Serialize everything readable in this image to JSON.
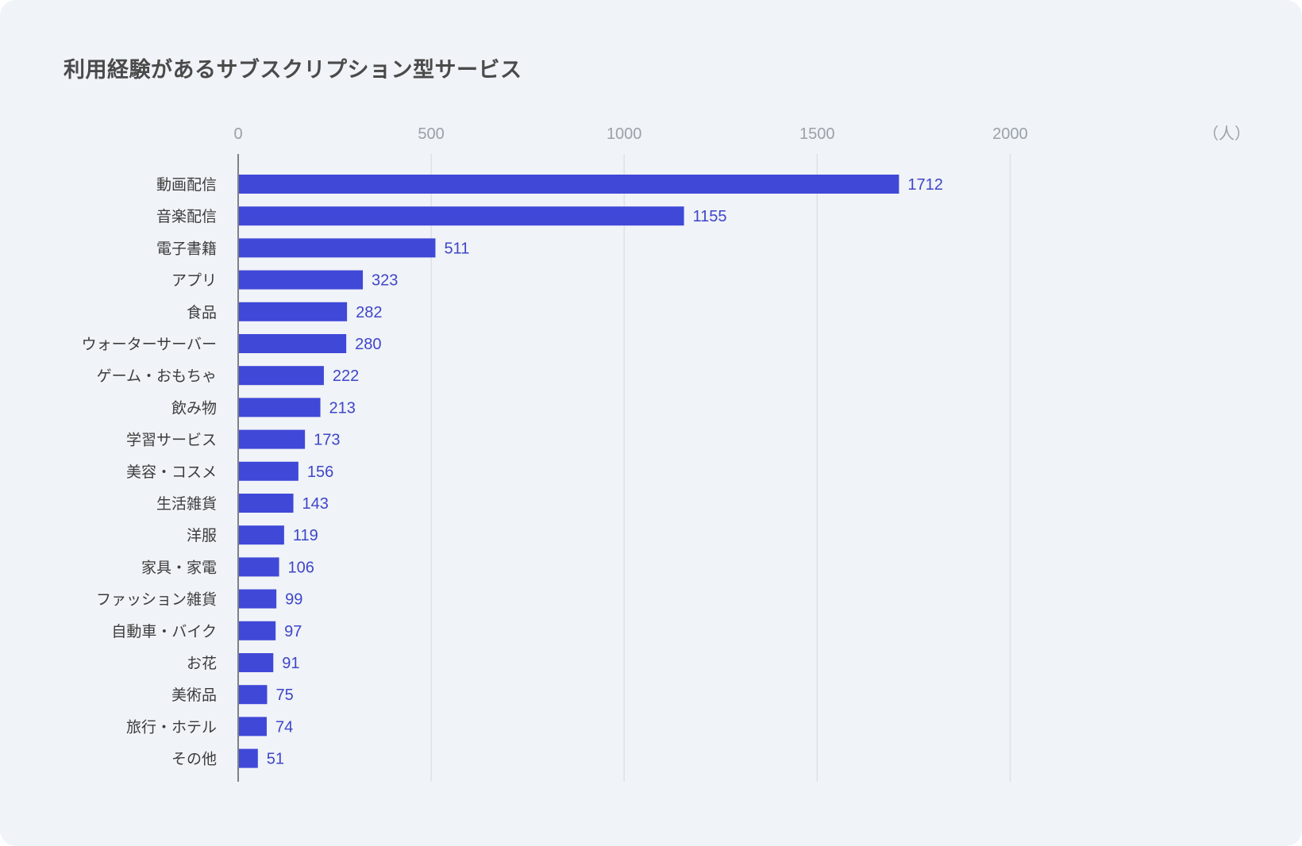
{
  "chart_data": {
    "type": "bar",
    "orientation": "horizontal",
    "title": "利用経験があるサブスクリプション型サービス",
    "unit_label": "（人）",
    "categories": [
      "動画配信",
      "音楽配信",
      "電子書籍",
      "アプリ",
      "食品",
      "ウォーターサーバー",
      "ゲーム・おもちゃ",
      "飲み物",
      "学習サービス",
      "美容・コスメ",
      "生活雑貨",
      "洋服",
      "家具・家電",
      "ファッション雑貨",
      "自動車・バイク",
      "お花",
      "美術品",
      "旅行・ホテル",
      "その他"
    ],
    "values": [
      1712,
      1155,
      511,
      323,
      282,
      280,
      222,
      213,
      173,
      156,
      143,
      119,
      106,
      99,
      97,
      91,
      75,
      74,
      51
    ],
    "xlim": [
      0,
      2500
    ],
    "xticks": [
      0,
      500,
      1000,
      1500,
      2000
    ],
    "grid": true,
    "bar_color": "#4048d8",
    "value_label_color": "#3f46c8"
  }
}
